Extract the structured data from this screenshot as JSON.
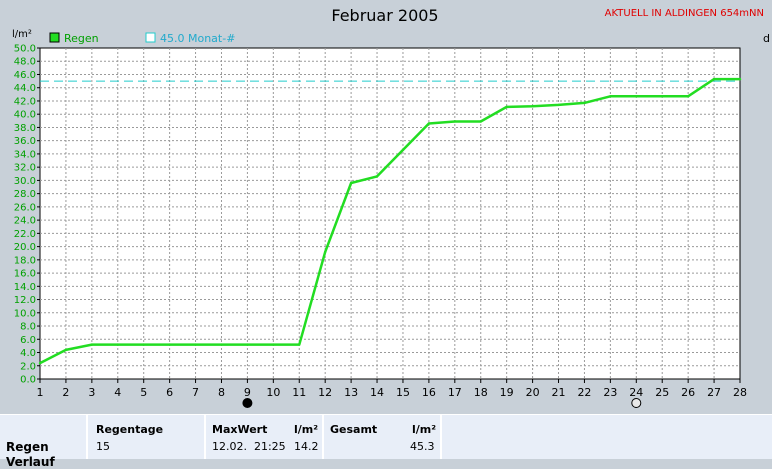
{
  "header": {
    "title": "Februar 2005",
    "live_notice": "AKTUELL IN ALDINGEN 654mNN",
    "right_edge_label": "d"
  },
  "chart_data": {
    "type": "line",
    "ylabel": "l/m²",
    "ylim": [
      0,
      50
    ],
    "yticks": [
      "0.0",
      "2.0",
      "4.0",
      "6.0",
      "8.0",
      "10.0",
      "12.0",
      "14.0",
      "16.0",
      "18.0",
      "20.0",
      "22.0",
      "24.0",
      "26.0",
      "28.0",
      "30.0",
      "32.0",
      "34.0",
      "36.0",
      "38.0",
      "40.0",
      "42.0",
      "44.0",
      "46.0",
      "48.0",
      "50.0"
    ],
    "xlim": [
      1,
      28
    ],
    "xticks": [
      "1",
      "2",
      "3",
      "4",
      "5",
      "6",
      "7",
      "8",
      "9",
      "10",
      "11",
      "12",
      "13",
      "14",
      "15",
      "16",
      "17",
      "18",
      "19",
      "20",
      "21",
      "22",
      "23",
      "24",
      "25",
      "26",
      "27",
      "28"
    ],
    "grid": true,
    "series": [
      {
        "name": "Regen",
        "color": "#22dd22",
        "x": [
          1,
          2,
          3,
          4,
          5,
          6,
          7,
          8,
          9,
          10,
          11,
          12,
          13,
          14,
          15,
          16,
          17,
          18,
          19,
          20,
          21,
          22,
          23,
          24,
          25,
          26,
          27,
          28
        ],
        "y": [
          2.4,
          4.4,
          5.2,
          5.2,
          5.2,
          5.2,
          5.2,
          5.2,
          5.2,
          5.2,
          5.2,
          19.2,
          29.6,
          30.6,
          34.6,
          38.6,
          38.9,
          38.9,
          41.1,
          41.2,
          41.4,
          41.7,
          42.7,
          42.7,
          42.7,
          42.7,
          45.3,
          45.3
        ]
      }
    ],
    "reference": {
      "name": "45.0 Monat-#",
      "value": 45.0,
      "color": "#22cccc"
    },
    "moon_markers": [
      {
        "day": 9,
        "phase": "new-moon"
      },
      {
        "day": 24,
        "phase": "full-moon"
      }
    ]
  },
  "stats": {
    "row_label": "Regen",
    "row_label_2": "Verlauf",
    "regentage": {
      "header": "Regentage",
      "value": "15"
    },
    "maxwert": {
      "header": "MaxWert",
      "unit": "l/m²",
      "date_time": "12.02.  21:25",
      "value": "14.2"
    },
    "gesamt": {
      "header": "Gesamt",
      "unit": "l/m²",
      "value": "45.3"
    }
  }
}
